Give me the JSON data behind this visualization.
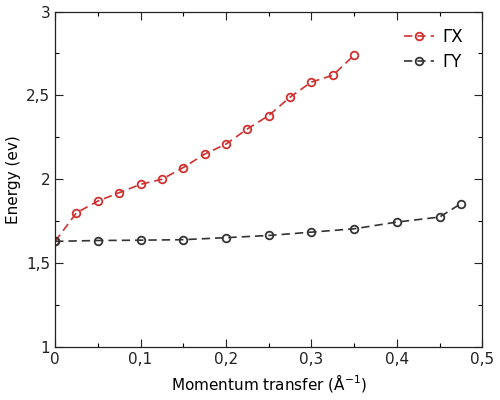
{
  "GX_x": [
    0.0,
    0.025,
    0.05,
    0.075,
    0.1,
    0.125,
    0.15,
    0.175,
    0.2,
    0.225,
    0.25,
    0.275,
    0.3,
    0.325,
    0.35
  ],
  "GX_y": [
    1.63,
    1.8,
    1.87,
    1.92,
    1.97,
    2.0,
    2.07,
    2.15,
    2.21,
    2.3,
    2.38,
    2.49,
    2.58,
    2.62,
    2.74
  ],
  "GY_x": [
    0.0,
    0.05,
    0.1,
    0.15,
    0.2,
    0.25,
    0.3,
    0.35,
    0.4,
    0.45,
    0.475
  ],
  "GY_y": [
    1.63,
    1.635,
    1.637,
    1.64,
    1.652,
    1.665,
    1.685,
    1.705,
    1.745,
    1.775,
    1.855
  ],
  "GX_color": "#d03030",
  "GY_color": "#333333",
  "xlabel": "Momentum transfer (Å$^{-1}$)",
  "ylabel": "Energy (ev)",
  "xlim": [
    0,
    0.5
  ],
  "ylim": [
    1.0,
    3.0
  ],
  "yticks": [
    1.0,
    1.5,
    2.0,
    2.5,
    3.0
  ],
  "ytick_labels": [
    "1",
    "1,5",
    "2",
    "2,5",
    "3"
  ],
  "xticks": [
    0.0,
    0.1,
    0.2,
    0.3,
    0.4,
    0.5
  ],
  "xtick_labels": [
    "0",
    "0,1",
    "0,2",
    "0,3",
    "0,4",
    "0,5"
  ],
  "legend_GX": "ΓX",
  "legend_GY": "ΓY",
  "background_color": "#ffffff"
}
